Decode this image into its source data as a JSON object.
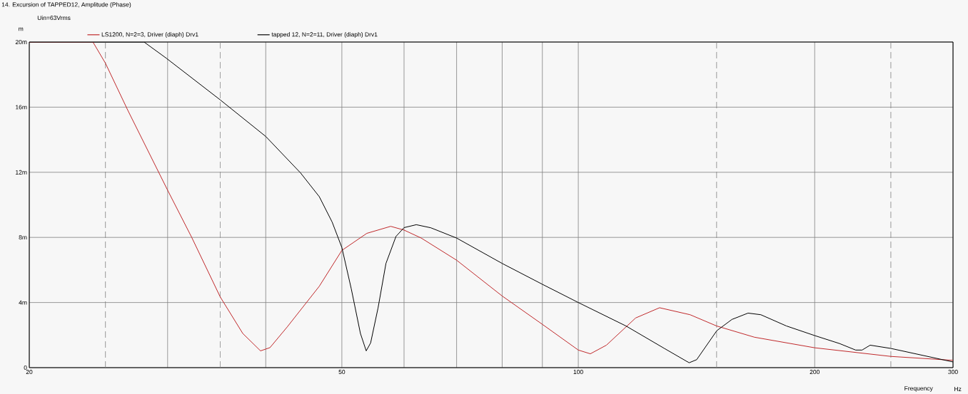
{
  "chart_data": {
    "type": "line",
    "title": "14. Excursion of TAPPED12, Amplitude (Phase)",
    "xlabel": "Frequency",
    "ylabel": "m",
    "annotations": [
      "Uin=63Vrms",
      "Hz"
    ],
    "log": "x",
    "grid": true,
    "legend": "top left",
    "line_style": "solid",
    "marker": "none",
    "xlim": [
      20,
      300
    ],
    "ylim": [
      0,
      20
    ],
    "xticks": [
      20,
      {
        "value": 30,
        "label": null
      },
      {
        "value": 40,
        "label": null
      },
      50,
      {
        "value": 60,
        "label": null
      },
      {
        "value": 70,
        "label": null
      },
      {
        "value": 80,
        "label": null
      },
      {
        "value": 90,
        "label": null
      },
      100,
      200,
      300
    ],
    "yticks": [
      {
        "value": 0,
        "label": "0"
      },
      {
        "value": 4,
        "label": "4m"
      },
      {
        "value": 8,
        "label": "8m"
      },
      {
        "value": 12,
        "label": "12m"
      },
      {
        "value": 16,
        "label": "16m"
      },
      {
        "value": 20,
        "label": "20m"
      }
    ],
    "ref_lines": [
      {
        "axis": "x",
        "value": 25,
        "color": "#808080",
        "line_style": "dashed"
      },
      {
        "axis": "x",
        "value": 35,
        "color": "#808080",
        "line_style": "dashed"
      },
      {
        "axis": "x",
        "value": 150,
        "color": "#808080",
        "line_style": "dashed"
      },
      {
        "axis": "x",
        "value": 250,
        "color": "#808080",
        "line_style": "dashed"
      }
    ],
    "series": [
      {
        "name": "LS1200, N=2=3, Driver (diaph) Drv1",
        "color": "#c0282a",
        "x": [
          20,
          24.1,
          25,
          26.7,
          30,
          32.2,
          35,
          37.4,
          39.4,
          40.5,
          42.6,
          46.8,
          50,
          53.8,
          57.7,
          60,
          63.1,
          70,
          80,
          90,
          100,
          103.6,
          108.6,
          118.3,
          126.9,
          138.8,
          150,
          167.6,
          200,
          250,
          300
        ],
        "values": [
          20,
          20,
          18.7,
          15.8,
          10.9,
          8.0,
          4.35,
          2.1,
          1.03,
          1.23,
          2.5,
          5.0,
          7.2,
          8.25,
          8.68,
          8.45,
          7.96,
          6.6,
          4.4,
          2.66,
          1.08,
          0.85,
          1.38,
          3.05,
          3.68,
          3.25,
          2.56,
          1.87,
          1.22,
          0.69,
          0.45
        ]
      },
      {
        "name": "tapped 12, N=2=11, Driver (diaph) Drv1",
        "color": "#000000",
        "x": [
          20,
          28,
          29.9,
          35,
          40,
          44.3,
          46.8,
          48.6,
          50,
          51.4,
          52.8,
          53.7,
          54.4,
          55.6,
          56.9,
          58.6,
          60,
          62.2,
          64.9,
          70,
          80,
          90,
          100,
          115,
          128.7,
          138.4,
          141.5,
          150.1,
          156.9,
          164.5,
          170.8,
          184.1,
          200,
          215.1,
          225.5,
          229.8,
          235.3,
          250,
          300
        ],
        "values": [
          20,
          20,
          19.0,
          16.45,
          14.2,
          11.96,
          10.5,
          8.94,
          7.38,
          4.84,
          2.1,
          1.03,
          1.52,
          3.67,
          6.4,
          8.06,
          8.6,
          8.78,
          8.59,
          7.96,
          6.4,
          5.12,
          4.0,
          2.56,
          1.18,
          0.3,
          0.49,
          2.27,
          2.96,
          3.35,
          3.25,
          2.56,
          1.97,
          1.48,
          1.08,
          1.08,
          1.38,
          1.18,
          0.35
        ]
      }
    ]
  }
}
